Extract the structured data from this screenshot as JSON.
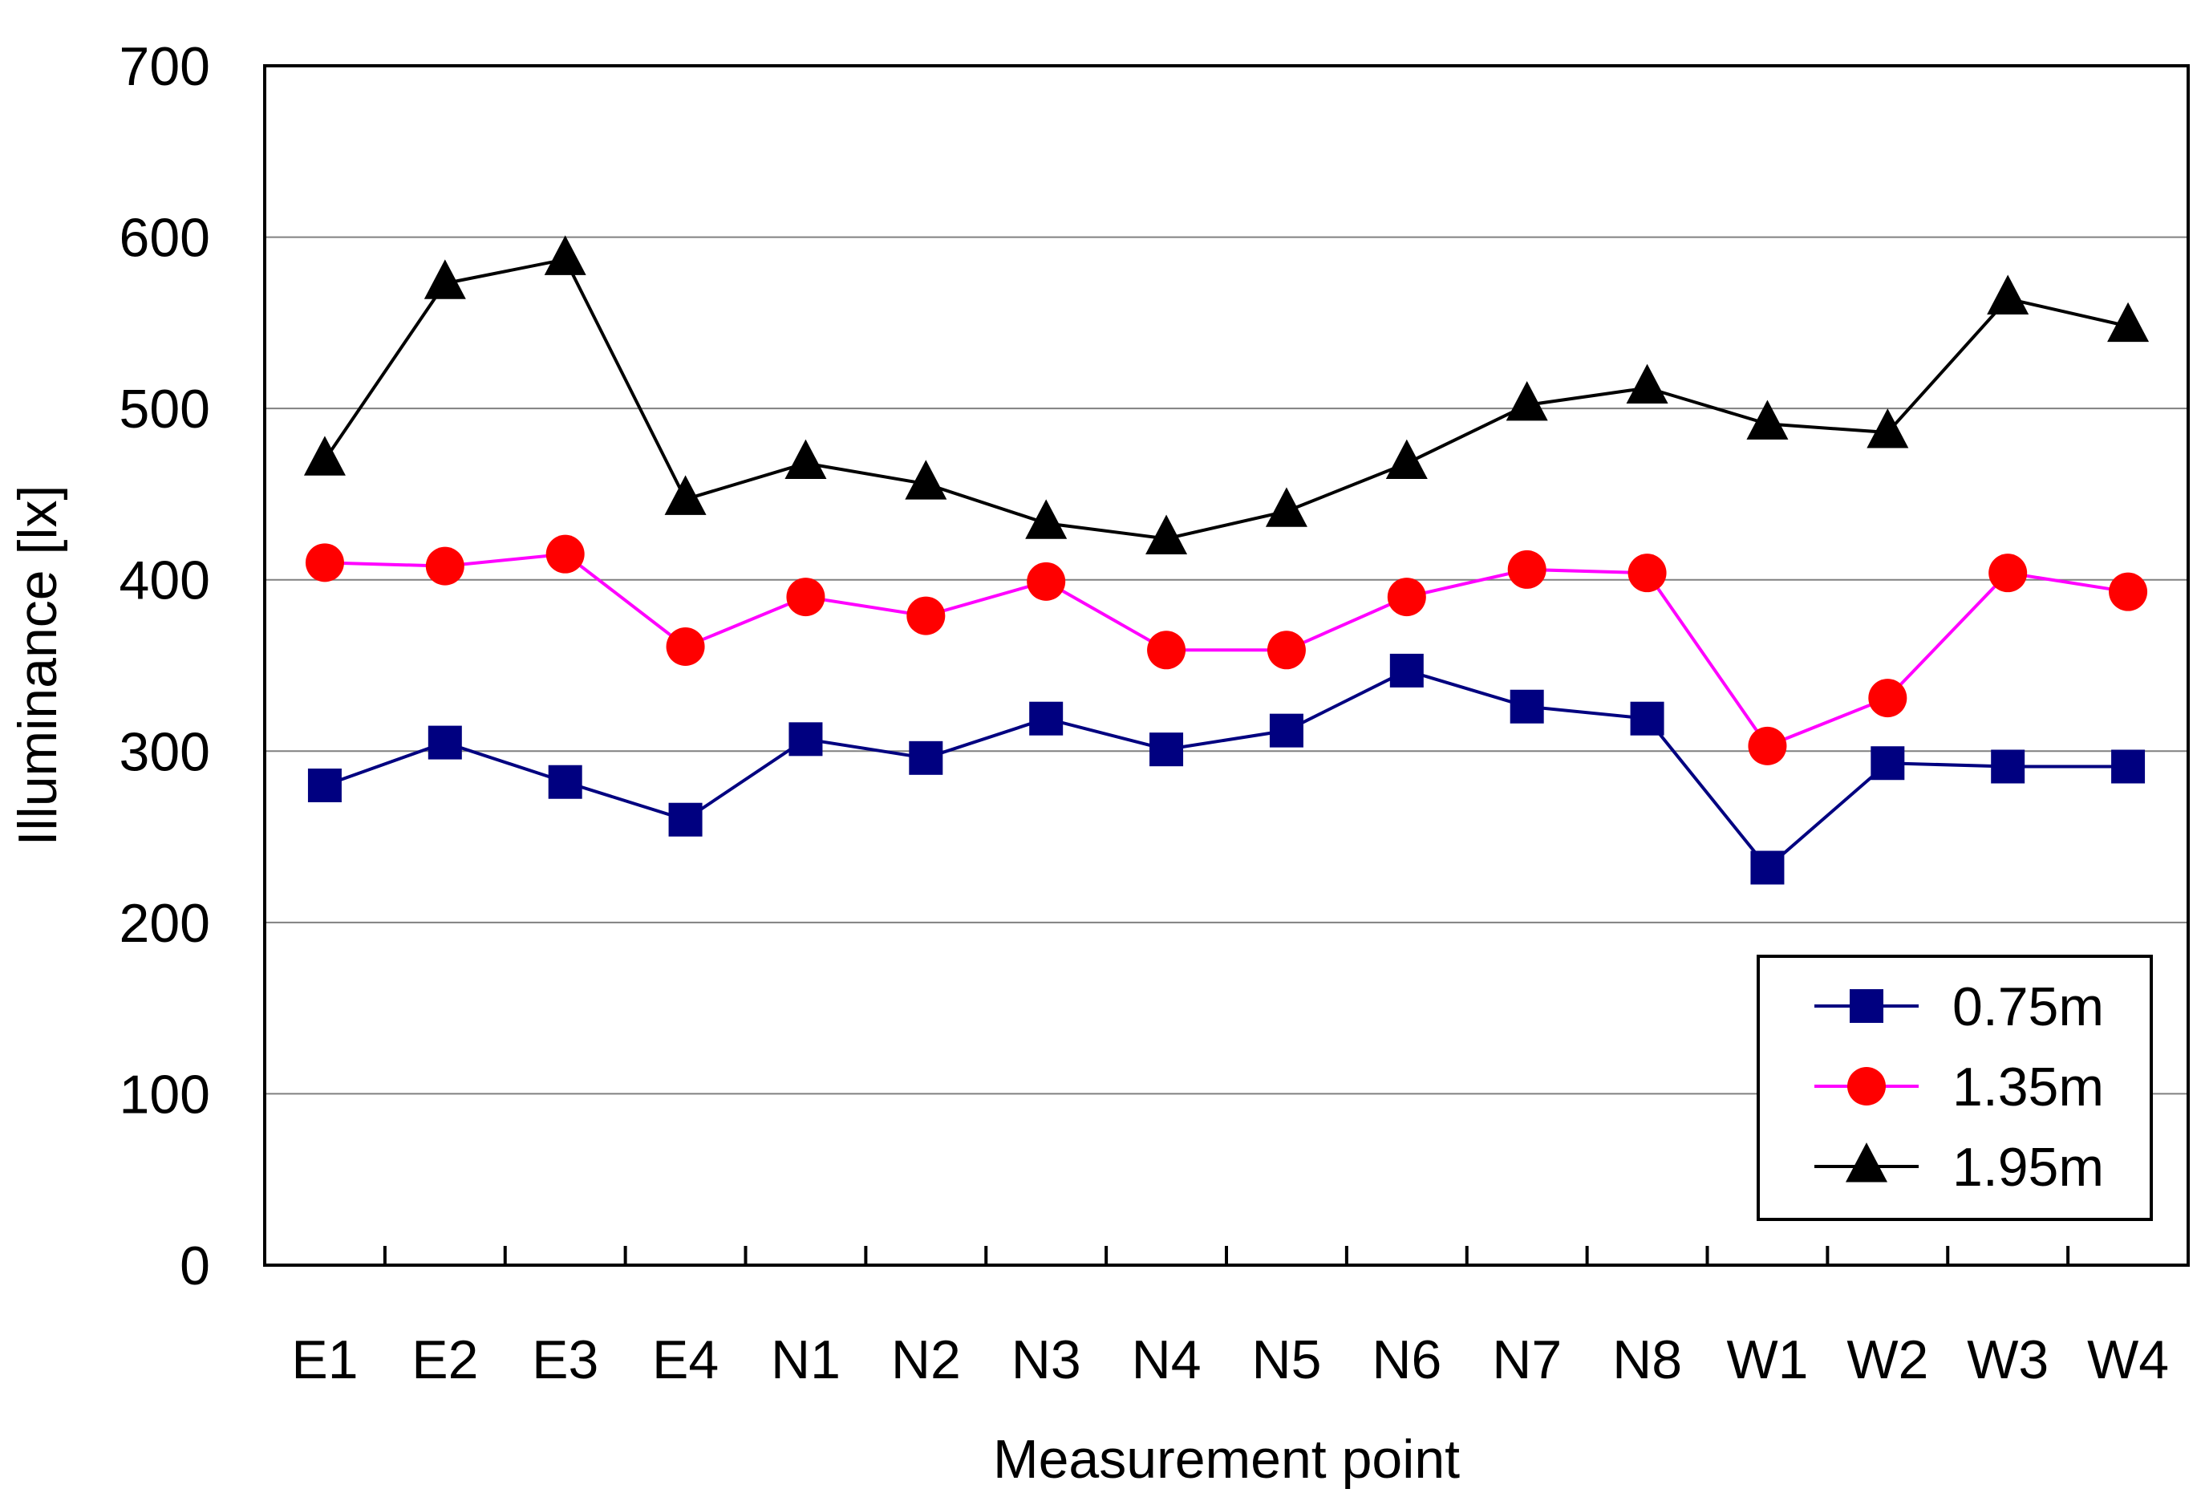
{
  "chart_data": {
    "type": "line",
    "title": "",
    "xlabel": "Measurement point",
    "ylabel": "Illuminance [lx]",
    "ylim": [
      0,
      700
    ],
    "yticks": [
      0,
      100,
      200,
      300,
      400,
      500,
      600,
      700
    ],
    "grid": true,
    "legend_position": "bottom-right",
    "categories": [
      "E1",
      "E2",
      "E3",
      "E4",
      "N1",
      "N2",
      "N3",
      "N4",
      "N5",
      "N6",
      "N7",
      "N8",
      "W1",
      "W2",
      "W3",
      "W4"
    ],
    "series": [
      {
        "name": "0.75m",
        "color": "#000080",
        "marker": "square",
        "values": [
          280,
          305,
          282,
          260,
          307,
          296,
          319,
          301,
          312,
          347,
          326,
          319,
          232,
          293,
          291,
          291
        ]
      },
      {
        "name": "1.35m",
        "color": "#ff00ff",
        "marker_color": "#ff0000",
        "marker": "circle",
        "values": [
          410,
          408,
          415,
          361,
          390,
          379,
          399,
          359,
          359,
          390,
          406,
          404,
          303,
          331,
          404,
          393
        ]
      },
      {
        "name": "1.95m",
        "color": "#000000",
        "marker": "triangle",
        "values": [
          470,
          573,
          587,
          447,
          468,
          456,
          433,
          424,
          440,
          468,
          502,
          512,
          491,
          486,
          564,
          548
        ]
      }
    ]
  }
}
